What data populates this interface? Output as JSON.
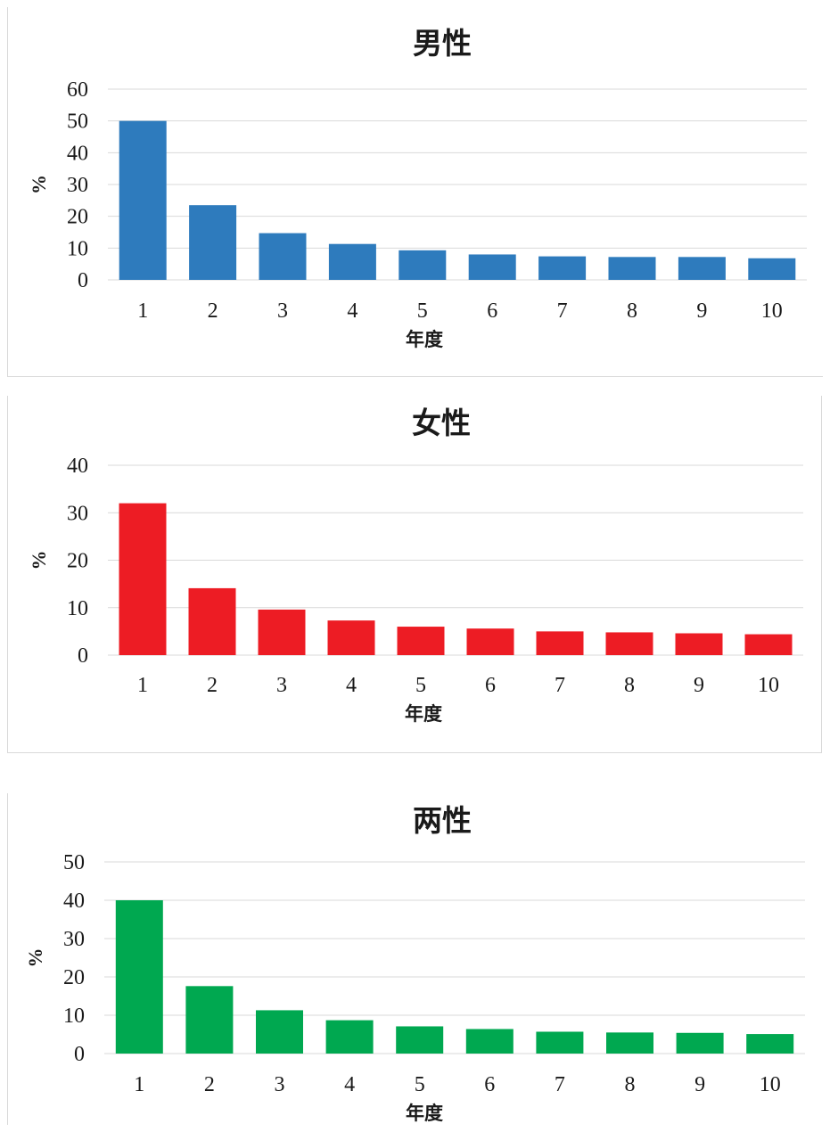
{
  "chart_data": [
    {
      "type": "bar",
      "title": "男性",
      "xlabel": "年度",
      "ylabel": "%",
      "categories": [
        "1",
        "2",
        "3",
        "4",
        "5",
        "6",
        "7",
        "8",
        "9",
        "10"
      ],
      "values": [
        50,
        23.5,
        14.7,
        11.3,
        9.3,
        8,
        7.4,
        7.2,
        7.2,
        6.8
      ],
      "ylim": [
        0,
        60
      ],
      "yticks": [
        0,
        10,
        20,
        30,
        40,
        50,
        60
      ],
      "color": "#2e7bbd",
      "grid": true,
      "legend": "none"
    },
    {
      "type": "bar",
      "title": "女性",
      "xlabel": "年度",
      "ylabel": "%",
      "categories": [
        "1",
        "2",
        "3",
        "4",
        "5",
        "6",
        "7",
        "8",
        "9",
        "10"
      ],
      "values": [
        32,
        14.1,
        9.6,
        7.3,
        6,
        5.6,
        5,
        4.8,
        4.6,
        4.4
      ],
      "ylim": [
        0,
        40
      ],
      "yticks": [
        0,
        10,
        20,
        30,
        40
      ],
      "color": "#ed1c24",
      "grid": true,
      "legend": "none"
    },
    {
      "type": "bar",
      "title": "两性",
      "xlabel": "年度",
      "ylabel": "%",
      "categories": [
        "1",
        "2",
        "3",
        "4",
        "5",
        "6",
        "7",
        "8",
        "9",
        "10"
      ],
      "values": [
        40,
        17.6,
        11.3,
        8.7,
        7.1,
        6.4,
        5.7,
        5.5,
        5.4,
        5.1
      ],
      "ylim": [
        0,
        50
      ],
      "yticks": [
        0,
        10,
        20,
        30,
        40,
        50
      ],
      "color": "#00a850",
      "grid": true,
      "legend": "none"
    }
  ]
}
